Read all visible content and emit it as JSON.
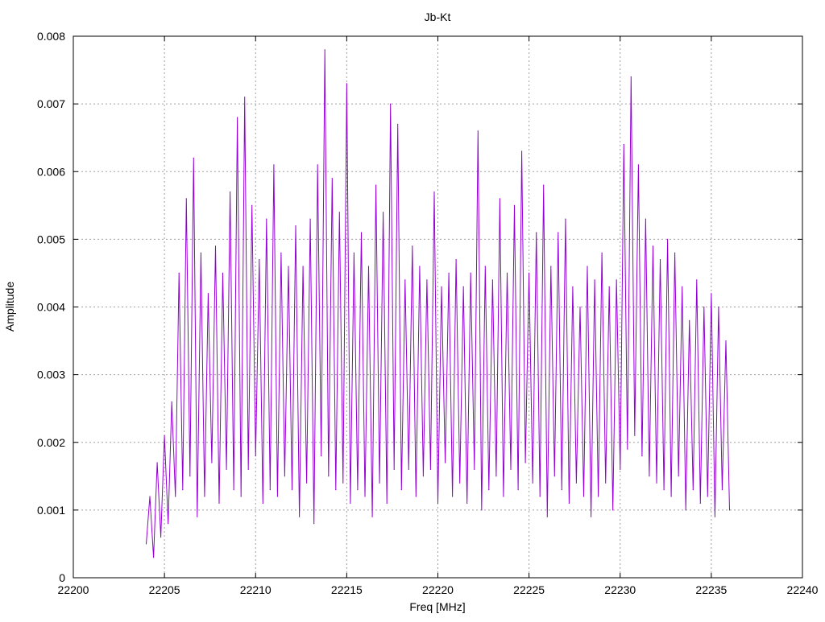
{
  "chart_data": {
    "type": "line",
    "title": "Jb-Kt",
    "xlabel": "Freq [MHz]",
    "ylabel": "Amplitude",
    "xlim": [
      22200,
      22240
    ],
    "ylim": [
      0,
      0.008
    ],
    "x_ticks": [
      "22200",
      "22205",
      "22210",
      "22215",
      "22220",
      "22225",
      "22230",
      "22235",
      "22240"
    ],
    "y_ticks": [
      "0",
      "0.001",
      "0.002",
      "0.003",
      "0.004",
      "0.005",
      "0.006",
      "0.007",
      "0.008"
    ],
    "grid": true,
    "legend": "none",
    "series": [
      {
        "color": "#9400d3",
        "x": [
          22204.0,
          22204.2,
          22204.4,
          22204.6,
          22204.8,
          22205.0,
          22205.2,
          22205.4,
          22205.6,
          22205.8,
          22206.0,
          22206.2,
          22206.4,
          22206.6,
          22206.8,
          22207.0,
          22207.2,
          22207.4,
          22207.6,
          22207.8,
          22208.0,
          22208.2,
          22208.4,
          22208.6,
          22208.8,
          22209.0,
          22209.2,
          22209.4,
          22209.6,
          22209.8,
          22210.0,
          22210.2,
          22210.4,
          22210.6,
          22210.8,
          22211.0,
          22211.2,
          22211.4,
          22211.6,
          22211.8,
          22212.0,
          22212.2,
          22212.4,
          22212.6,
          22212.8,
          22213.0,
          22213.2,
          22213.4,
          22213.6,
          22213.8,
          22214.0,
          22214.2,
          22214.4,
          22214.6,
          22214.8,
          22215.0,
          22215.2,
          22215.4,
          22215.6,
          22215.8,
          22216.0,
          22216.2,
          22216.4,
          22216.6,
          22216.8,
          22217.0,
          22217.2,
          22217.4,
          22217.6,
          22217.8,
          22218.0,
          22218.2,
          22218.4,
          22218.6,
          22218.8,
          22219.0,
          22219.2,
          22219.4,
          22219.6,
          22219.8,
          22220.0,
          22220.2,
          22220.4,
          22220.6,
          22220.8,
          22221.0,
          22221.2,
          22221.4,
          22221.6,
          22221.8,
          22222.0,
          22222.2,
          22222.4,
          22222.6,
          22222.8,
          22223.0,
          22223.2,
          22223.4,
          22223.6,
          22223.8,
          22224.0,
          22224.2,
          22224.4,
          22224.6,
          22224.8,
          22225.0,
          22225.2,
          22225.4,
          22225.6,
          22225.8,
          22226.0,
          22226.2,
          22226.4,
          22226.6,
          22226.8,
          22227.0,
          22227.2,
          22227.4,
          22227.6,
          22227.8,
          22228.0,
          22228.2,
          22228.4,
          22228.6,
          22228.8,
          22229.0,
          22229.2,
          22229.4,
          22229.6,
          22229.8,
          22230.0,
          22230.2,
          22230.4,
          22230.6,
          22230.8,
          22231.0,
          22231.2,
          22231.4,
          22231.6,
          22231.8,
          22232.0,
          22232.2,
          22232.4,
          22232.6,
          22232.8,
          22233.0,
          22233.2,
          22233.4,
          22233.6,
          22233.8,
          22234.0,
          22234.2,
          22234.4,
          22234.6,
          22234.8,
          22235.0,
          22235.2,
          22235.4,
          22235.6,
          22235.8,
          22236.0
        ],
        "y": [
          0.0005,
          0.0012,
          0.0003,
          0.0017,
          0.0006,
          0.0021,
          0.0008,
          0.0026,
          0.0012,
          0.0045,
          0.0013,
          0.0056,
          0.0015,
          0.0062,
          0.0009,
          0.0048,
          0.0012,
          0.0042,
          0.0017,
          0.0049,
          0.0011,
          0.0045,
          0.0016,
          0.0057,
          0.0013,
          0.0068,
          0.0012,
          0.0071,
          0.0016,
          0.0055,
          0.0018,
          0.0047,
          0.0011,
          0.0053,
          0.0013,
          0.0061,
          0.0012,
          0.0048,
          0.0015,
          0.0046,
          0.0013,
          0.0052,
          0.0009,
          0.0046,
          0.0014,
          0.0053,
          0.0008,
          0.0061,
          0.0018,
          0.0078,
          0.0015,
          0.0059,
          0.0013,
          0.0054,
          0.0014,
          0.0073,
          0.0011,
          0.0048,
          0.0013,
          0.0051,
          0.0012,
          0.0046,
          0.0009,
          0.0058,
          0.0014,
          0.0054,
          0.0011,
          0.007,
          0.0016,
          0.0067,
          0.0013,
          0.0044,
          0.0016,
          0.0049,
          0.0012,
          0.0046,
          0.0015,
          0.0044,
          0.0016,
          0.0057,
          0.0011,
          0.0043,
          0.0017,
          0.0045,
          0.0012,
          0.0047,
          0.0014,
          0.0043,
          0.0011,
          0.0045,
          0.0016,
          0.0066,
          0.001,
          0.0046,
          0.0013,
          0.0044,
          0.0015,
          0.0056,
          0.0012,
          0.0045,
          0.0016,
          0.0055,
          0.0013,
          0.0063,
          0.0017,
          0.0045,
          0.0014,
          0.0051,
          0.0012,
          0.0058,
          0.0009,
          0.0046,
          0.0015,
          0.0051,
          0.0013,
          0.0053,
          0.0011,
          0.0043,
          0.0014,
          0.004,
          0.0012,
          0.0046,
          0.0009,
          0.0044,
          0.0012,
          0.0048,
          0.0014,
          0.0043,
          0.001,
          0.0044,
          0.0016,
          0.0064,
          0.0019,
          0.0074,
          0.0021,
          0.0061,
          0.0018,
          0.0053,
          0.0015,
          0.0049,
          0.0014,
          0.0047,
          0.0013,
          0.005,
          0.0012,
          0.0048,
          0.0015,
          0.0043,
          0.001,
          0.0038,
          0.0013,
          0.0044,
          0.0011,
          0.004,
          0.0012,
          0.0042,
          0.0009,
          0.004,
          0.0013,
          0.0035,
          0.001
        ]
      }
    ]
  }
}
